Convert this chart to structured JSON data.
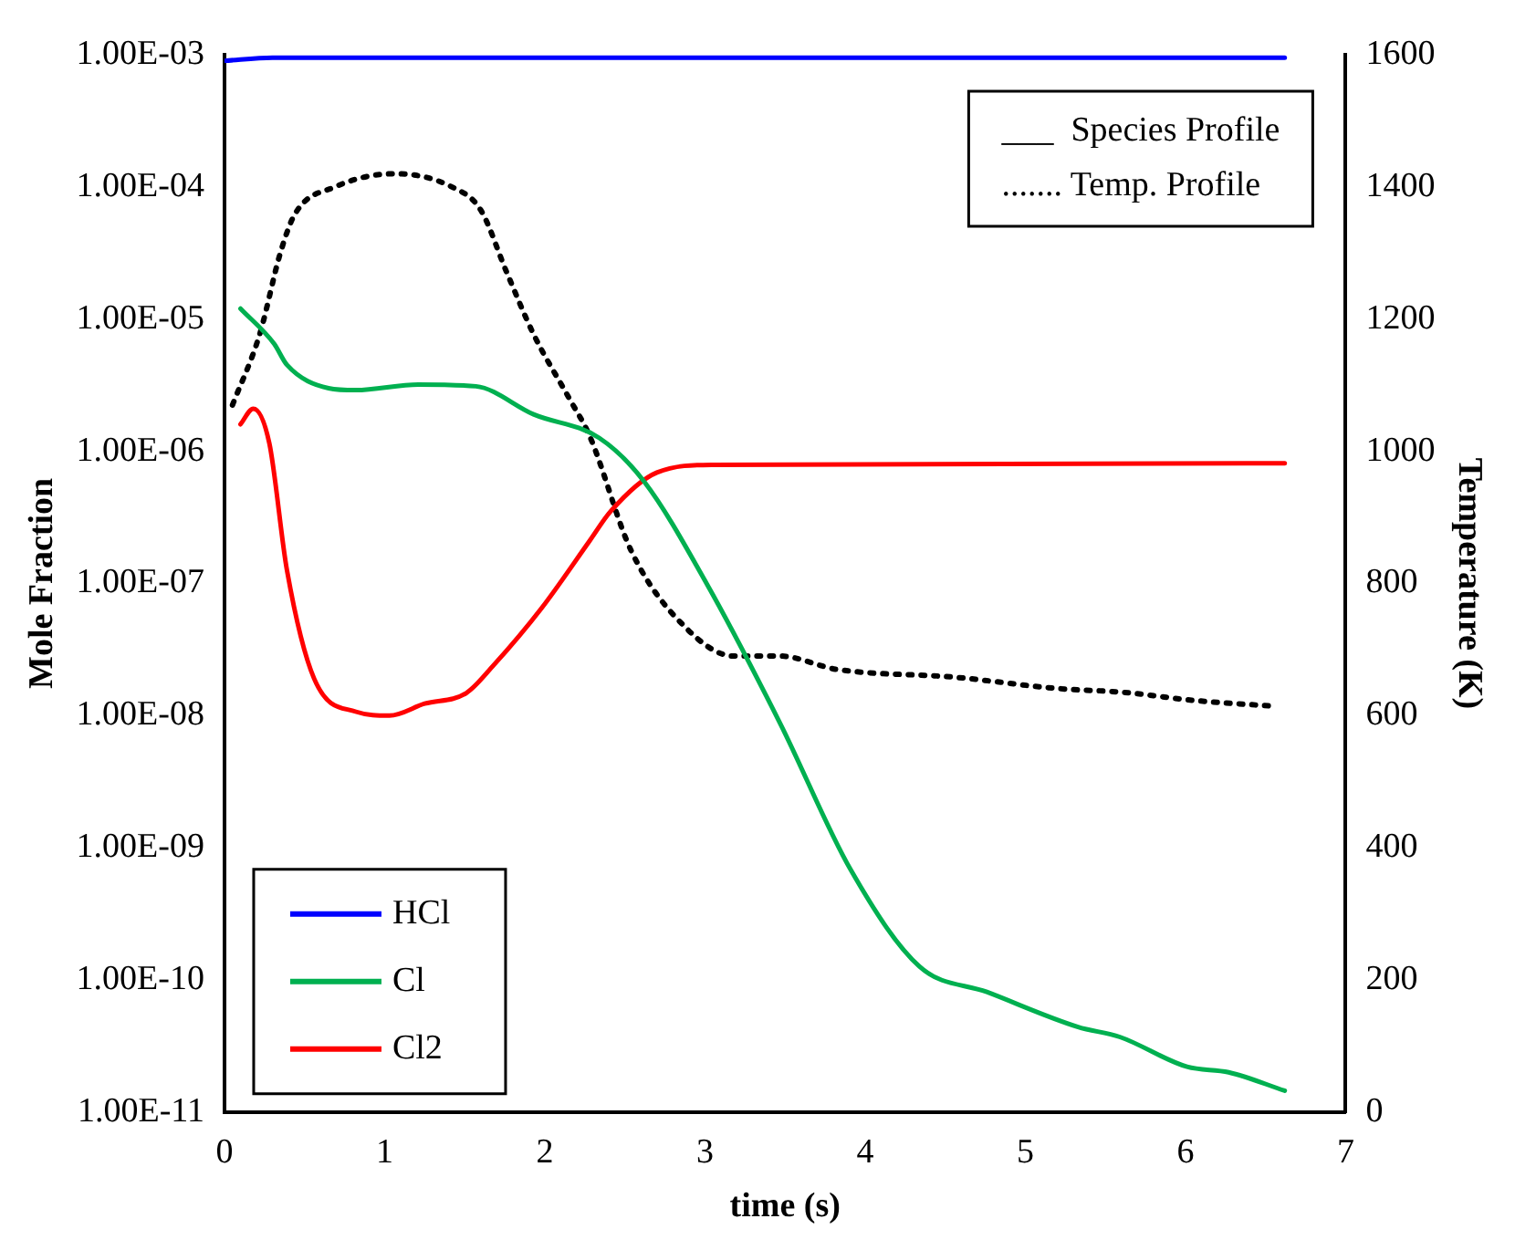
{
  "chart_data": {
    "type": "line",
    "xlabel": "time (s)",
    "ylabel": "Mole Fraction",
    "y2label": "Temperature (K)",
    "log": "y",
    "grid": false,
    "legend": "bottom left",
    "marker": "none",
    "xlim": [
      0,
      7
    ],
    "xticks": [
      0,
      1,
      2,
      3,
      4,
      5,
      6,
      7
    ],
    "ylim": [
      1e-11,
      0.001
    ],
    "yticks": [
      {
        "value": 1e-11,
        "label": "1.00E-11"
      },
      {
        "value": 1e-10,
        "label": "1.00E-10"
      },
      {
        "value": 1e-09,
        "label": "1.00E-09"
      },
      {
        "value": 1e-08,
        "label": "1.00E-08"
      },
      {
        "value": 1e-07,
        "label": "1.00E-07"
      },
      {
        "value": 1e-06,
        "label": "1.00E-06"
      },
      {
        "value": 1e-05,
        "label": "1.00E-05"
      },
      {
        "value": 0.0001,
        "label": "1.00E-04"
      },
      {
        "value": 0.001,
        "label": "1.00E-03"
      }
    ],
    "y2lim": [
      0,
      1600
    ],
    "y2ticks": [
      0,
      200,
      400,
      600,
      800,
      1000,
      1200,
      1400,
      1600
    ],
    "annotations": [
      "___  Species Profile",
      "....... Temp. Profile"
    ],
    "series": [
      {
        "name": "HCl",
        "color": "#0000ff",
        "line_style": "solid",
        "x": [
          0,
          0.3,
          1,
          3,
          6.62
        ],
        "values": [
          0.0009,
          0.00095,
          0.00095,
          0.00095,
          0.00095
        ]
      },
      {
        "name": "Cl",
        "color": "#00b050",
        "line_style": "solid",
        "x": [
          0.1,
          0.31,
          0.39,
          0.65,
          0.82,
          1.21,
          1.57,
          1.93,
          2.34,
          2.62,
          3.01,
          3.47,
          3.91,
          4.34,
          4.76,
          5.33,
          5.59,
          6.01,
          6.27,
          6.62
        ],
        "values": [
          1.2e-05,
          6.5e-06,
          4.5e-06,
          3e-06,
          2.9e-06,
          3.2e-06,
          3.1e-06,
          1.9e-06,
          1.26e-06,
          5.9e-07,
          1e-07,
          8.7e-09,
          6.8e-10,
          1.26e-10,
          8.1e-11,
          4.4e-11,
          3.7e-11,
          2.2e-11,
          2e-11,
          1.45e-11
        ]
      },
      {
        "name": "Cl2",
        "color": "#ff0000",
        "line_style": "solid",
        "x": [
          0.1,
          0.18,
          0.28,
          0.39,
          0.56,
          0.82,
          1.03,
          1.25,
          1.51,
          1.68,
          1.98,
          2.28,
          2.41,
          2.7,
          3.05,
          6.62
        ],
        "values": [
          1.6e-06,
          2.1e-06,
          1.15e-06,
          1.26e-07,
          1.9e-08,
          1.07e-08,
          1e-08,
          1.23e-08,
          1.48e-08,
          2.4e-08,
          6.5e-08,
          2.1e-07,
          3.5e-07,
          6.9e-07,
          7.9e-07,
          8.1e-07
        ]
      },
      {
        "color": "#000000",
        "axis": "y2",
        "line_style": "dotted",
        "x": [
          0.05,
          0.22,
          0.35,
          0.44,
          0.69,
          1.06,
          1.42,
          1.6,
          1.76,
          1.93,
          2.15,
          2.28,
          2.54,
          2.88,
          3.18,
          3.47,
          3.82,
          4.56,
          5.2,
          5.62,
          6.05,
          6.56
        ],
        "values": [
          1070,
          1177,
          1301,
          1359,
          1400,
          1420,
          1400,
          1365,
          1272,
          1177,
          1081,
          1023,
          849,
          733,
          690,
          690,
          670,
          658,
          641,
          635,
          623,
          614
        ]
      }
    ]
  }
}
